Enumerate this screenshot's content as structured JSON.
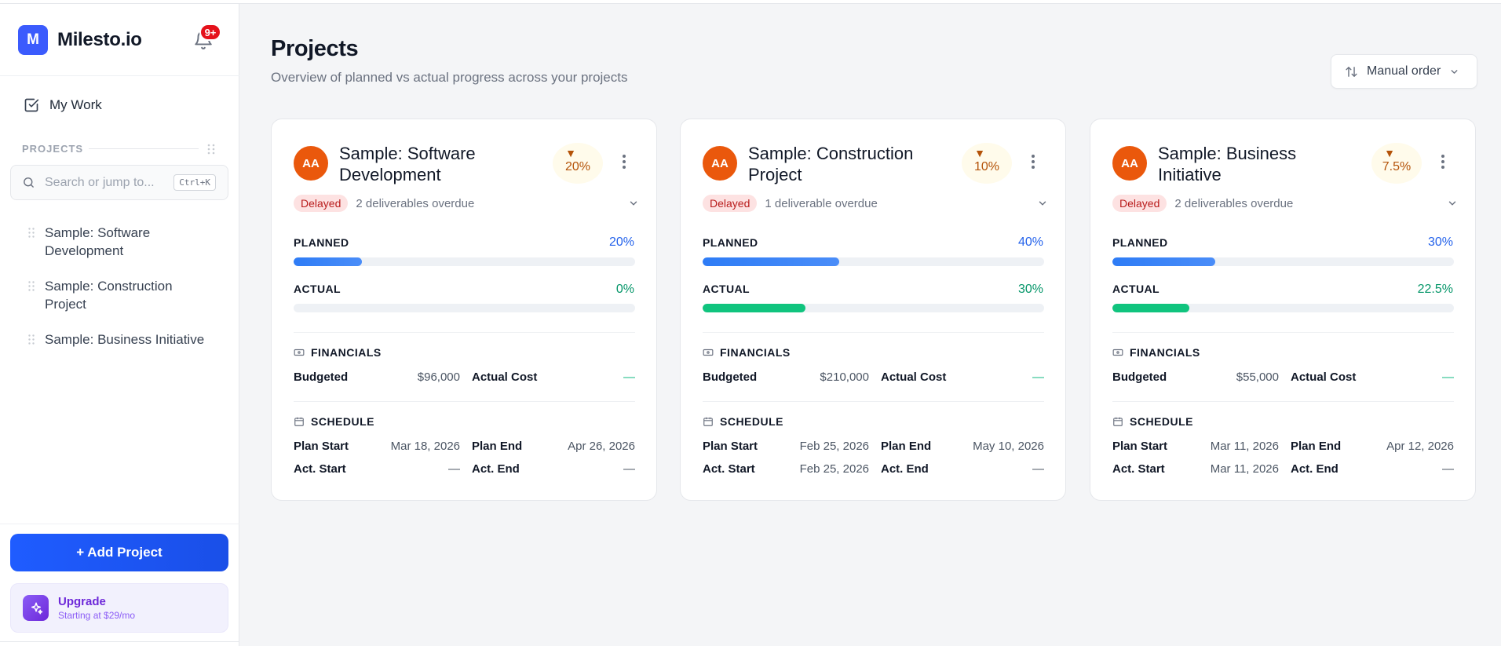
{
  "app": {
    "logo_letter": "M",
    "name": "Milesto.io",
    "notifications_badge": "9+"
  },
  "sidebar": {
    "my_work": "My Work",
    "projects_heading": "PROJECTS",
    "search_placeholder": "Search or jump to...",
    "search_shortcut": "Ctrl+K",
    "projects": [
      {
        "line1": "Sample: Software",
        "line2": "Development"
      },
      {
        "line1": "Sample: Construction",
        "line2": "Project"
      },
      {
        "line1": "Sample: Business Initiative",
        "line2": ""
      }
    ],
    "add_project": "+ Add Project",
    "upgrade_title": "Upgrade",
    "upgrade_sub": "Starting at $29/mo"
  },
  "header": {
    "title": "Projects",
    "subtitle": "Overview of planned vs actual progress across your projects",
    "order_label": "Manual order"
  },
  "labels": {
    "planned": "PLANNED",
    "actual": "ACTUAL",
    "financials": "FINANCIALS",
    "budgeted": "Budgeted",
    "actual_cost": "Actual Cost",
    "schedule": "SCHEDULE",
    "plan_start": "Plan Start",
    "plan_end": "Plan End",
    "act_start": "Act. Start",
    "act_end": "Act. End"
  },
  "cards": [
    {
      "initials": "AA",
      "title_l1": "Sample: Software",
      "title_l2": "Development",
      "delta_symbol": "▼",
      "delta": "20%",
      "status": "Delayed",
      "overdue": "2 deliverables overdue",
      "planned_pct": "20%",
      "planned_value": 20,
      "actual_pct": "0%",
      "actual_value": 0,
      "budgeted": "$96,000",
      "actual_cost": "—",
      "plan_start": "Mar 18, 2026",
      "plan_end": "Apr 26, 2026",
      "act_start": "—",
      "act_end": "—"
    },
    {
      "initials": "AA",
      "title_l1": "Sample: Construction",
      "title_l2": "Project",
      "delta_symbol": "▼",
      "delta": "10%",
      "status": "Delayed",
      "overdue": "1 deliverable overdue",
      "planned_pct": "40%",
      "planned_value": 40,
      "actual_pct": "30%",
      "actual_value": 30,
      "budgeted": "$210,000",
      "actual_cost": "—",
      "plan_start": "Feb 25, 2026",
      "plan_end": "May 10, 2026",
      "act_start": "Feb 25, 2026",
      "act_end": "—"
    },
    {
      "initials": "AA",
      "title_l1": "Sample: Business",
      "title_l2": "Initiative",
      "delta_symbol": "▼",
      "delta": "7.5%",
      "status": "Delayed",
      "overdue": "2 deliverables overdue",
      "planned_pct": "30%",
      "planned_value": 30,
      "actual_pct": "22.5%",
      "actual_value": 22.5,
      "budgeted": "$55,000",
      "actual_cost": "—",
      "plan_start": "Mar 11, 2026",
      "plan_end": "Apr 12, 2026",
      "act_start": "Mar 11, 2026",
      "act_end": "—"
    }
  ],
  "colors": {
    "brand": "#3b5bfd",
    "avatar": "#ea580c",
    "planned": "#2563eb",
    "actual": "#10c47e",
    "delayed": "#b91c1c"
  },
  "icons": {
    "bell": "bell-icon",
    "my_work": "checkbox-icon",
    "search": "search-icon",
    "grip": "drag-handle-icon",
    "upgrade": "sparkles-icon",
    "sort": "sort-arrows-icon",
    "kebab": "more-vertical-icon",
    "chevron": "chevron-down-icon",
    "financials": "banknote-icon",
    "schedule": "calendar-icon"
  }
}
